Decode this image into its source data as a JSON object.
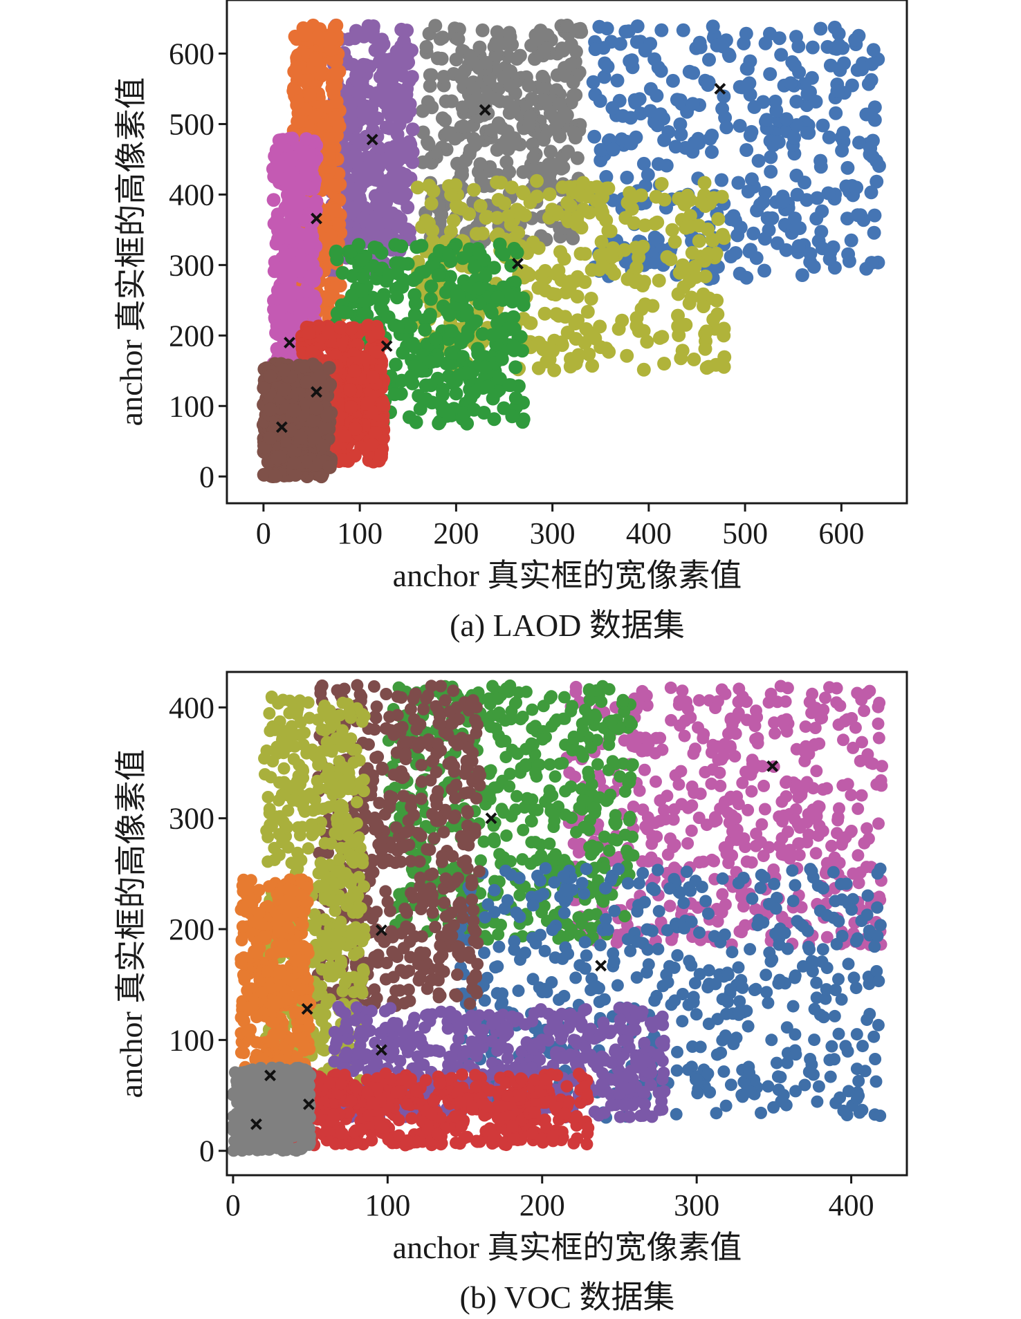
{
  "chart_data": [
    {
      "type": "scatter",
      "panel": "a",
      "caption": "(a) LAOD 数据集",
      "xlabel": "anchor 真实框的宽像素值",
      "ylabel": "anchor 真实框的高像素值",
      "xlim": [
        -38,
        668
      ],
      "ylim": [
        -38,
        676
      ],
      "xticks": [
        0,
        100,
        200,
        300,
        400,
        500,
        600
      ],
      "yticks": [
        0,
        100,
        200,
        300,
        400,
        500,
        600
      ],
      "grid": false,
      "legend": "none",
      "clusters": [
        {
          "color": "#4575b4",
          "center": [
            474,
            550
          ],
          "region": [
            [
              340,
              335
            ],
            [
              640,
              640
            ],
            [
              340,
              640
            ],
            [
              640,
              300
            ],
            [
              470,
              280
            ]
          ]
        },
        {
          "color": "#7f7f7f",
          "center": [
            230,
            520
          ],
          "region": [
            [
              165,
              330
            ],
            [
              330,
              640
            ],
            [
              165,
              640
            ],
            [
              330,
              420
            ],
            [
              200,
              330
            ]
          ]
        },
        {
          "color": "#8c62aa",
          "center": [
            113,
            478
          ],
          "region": [
            [
              70,
              290
            ],
            [
              155,
              640
            ],
            [
              70,
              640
            ],
            [
              155,
              320
            ],
            [
              100,
              300
            ]
          ]
        },
        {
          "color": "#e87033",
          "center": [
            55,
            366
          ],
          "region": [
            [
              30,
              220
            ],
            [
              70,
              640
            ],
            [
              30,
              640
            ],
            [
              80,
              230
            ],
            [
              45,
              280
            ]
          ]
        },
        {
          "color": "#b0b33a",
          "center": [
            264,
            302
          ],
          "region": [
            [
              160,
              150
            ],
            [
              400,
              420
            ],
            [
              190,
              400
            ],
            [
              480,
              300
            ],
            [
              300,
              160
            ]
          ]
        },
        {
          "color": "#2f9a3c",
          "center": [
            128,
            185
          ],
          "region": [
            [
              75,
              75
            ],
            [
              195,
              330
            ],
            [
              80,
              320
            ],
            [
              270,
              120
            ],
            [
              160,
              80
            ]
          ]
        },
        {
          "color": "#c45ab3",
          "center": [
            27,
            190
          ],
          "region": [
            [
              10,
              105
            ],
            [
              45,
              450
            ],
            [
              10,
              480
            ],
            [
              55,
              300
            ],
            [
              25,
              110
            ]
          ]
        },
        {
          "color": "#d43d35",
          "center": [
            55,
            120
          ],
          "region": [
            [
              40,
              20
            ],
            [
              120,
              215
            ],
            [
              45,
              210
            ],
            [
              125,
              60
            ],
            [
              80,
              30
            ]
          ]
        },
        {
          "color": "#7f5149",
          "center": [
            19,
            70
          ],
          "region": [
            [
              0,
              0
            ],
            [
              60,
              160
            ],
            [
              0,
              150
            ],
            [
              70,
              30
            ],
            [
              30,
              5
            ]
          ]
        }
      ]
    },
    {
      "type": "scatter",
      "panel": "b",
      "caption": "(b) VOC 数据集",
      "xlabel": "anchor 真实框的宽像素值",
      "ylabel": "anchor 真实框的高像素值",
      "xlim": [
        -4,
        436
      ],
      "ylim": [
        -22,
        432
      ],
      "xticks": [
        0,
        100,
        200,
        300,
        400
      ],
      "yticks": [
        0,
        100,
        200,
        300,
        400
      ],
      "grid": false,
      "legend": "none",
      "clusters": [
        {
          "color": "#bf5ca9",
          "center": [
            349,
            347
          ],
          "region": [
            [
              215,
              190
            ],
            [
              420,
              420
            ],
            [
              215,
              420
            ],
            [
              420,
              185
            ],
            [
              260,
              260
            ]
          ]
        },
        {
          "color": "#3f9b3c",
          "center": [
            167,
            300
          ],
          "region": [
            [
              100,
              190
            ],
            [
              260,
              420
            ],
            [
              100,
              420
            ],
            [
              260,
              260
            ],
            [
              160,
              190
            ]
          ]
        },
        {
          "color": "#3f6fa8",
          "center": [
            238,
            167
          ],
          "region": [
            [
              145,
              30
            ],
            [
              420,
              255
            ],
            [
              150,
              190
            ],
            [
              420,
              60
            ],
            [
              250,
              60
            ]
          ]
        },
        {
          "color": "#7e4c4b",
          "center": [
            96,
            199
          ],
          "region": [
            [
              55,
              130
            ],
            [
              160,
              420
            ],
            [
              55,
              420
            ],
            [
              160,
              180
            ],
            [
              100,
              130
            ]
          ]
        },
        {
          "color": "#a9b03c",
          "center": [
            48,
            128
          ],
          "region": [
            [
              20,
              60
            ],
            [
              85,
              410
            ],
            [
              20,
              410
            ],
            [
              80,
              90
            ],
            [
              50,
              60
            ]
          ]
        },
        {
          "color": "#7b58a8",
          "center": [
            96,
            91
          ],
          "region": [
            [
              65,
              30
            ],
            [
              265,
              130
            ],
            [
              65,
              120
            ],
            [
              280,
              40
            ],
            [
              150,
              50
            ]
          ]
        },
        {
          "color": "#e77b30",
          "center": [
            24,
            68
          ],
          "region": [
            [
              5,
              30
            ],
            [
              40,
              245
            ],
            [
              5,
              200
            ],
            [
              50,
              60
            ],
            [
              20,
              40
            ]
          ]
        },
        {
          "color": "#d1393a",
          "center": [
            49,
            42
          ],
          "region": [
            [
              25,
              5
            ],
            [
              210,
              70
            ],
            [
              25,
              60
            ],
            [
              230,
              20
            ],
            [
              120,
              20
            ]
          ]
        },
        {
          "color": "#808080",
          "center": [
            15,
            24
          ],
          "region": [
            [
              0,
              0
            ],
            [
              50,
              75
            ],
            [
              0,
              70
            ],
            [
              50,
              5
            ],
            [
              20,
              5
            ]
          ]
        }
      ]
    }
  ]
}
